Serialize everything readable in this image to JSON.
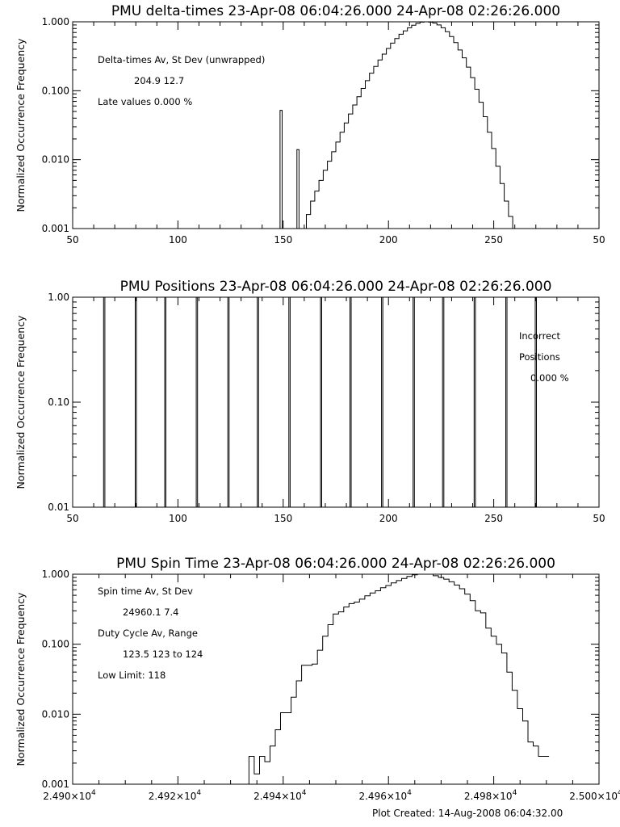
{
  "footer": "Plot Created: 14-Aug-2008 06:04:32.00",
  "chart_data": [
    {
      "type": "bar",
      "title": "PMU delta-times 23-Apr-08 06:04:26.000 24-Apr-08 02:26:26.000",
      "ylabel": "Normalized Occurrence Frequency",
      "y_scale": "log",
      "ylim": [
        0.001,
        1.0
      ],
      "y_tick_values": [
        0.001,
        0.01,
        0.1,
        1.0
      ],
      "y_tick_labels": [
        "0.001",
        "0.010",
        "0.100",
        "1.000"
      ],
      "x_ticks": [
        "50",
        "100",
        "150",
        "200",
        "250",
        "50"
      ],
      "annotations": [
        "Delta-times Av, St Dev (unwrapped)",
        "204.9    12.7",
        "Late values    0.000 %"
      ],
      "spikes": [
        {
          "x": 149,
          "value": 0.052
        },
        {
          "x": 157,
          "value": 0.014
        }
      ],
      "x_bin_start": 159,
      "x_bin_width": 2,
      "values": [
        0.001,
        0.0016,
        0.0025,
        0.0035,
        0.005,
        0.007,
        0.0095,
        0.013,
        0.018,
        0.025,
        0.034,
        0.046,
        0.062,
        0.082,
        0.108,
        0.14,
        0.18,
        0.225,
        0.28,
        0.34,
        0.41,
        0.49,
        0.57,
        0.66,
        0.74,
        0.82,
        0.89,
        0.95,
        0.99,
        1.0,
        0.99,
        0.96,
        0.9,
        0.82,
        0.72,
        0.61,
        0.5,
        0.39,
        0.3,
        0.22,
        0.155,
        0.105,
        0.068,
        0.042,
        0.025,
        0.0145,
        0.008,
        0.0045,
        0.0025,
        0.0015,
        0.001
      ]
    },
    {
      "type": "bar",
      "title": "PMU Positions 23-Apr-08 06:04:26.000 24-Apr-08 02:26:26.000",
      "ylabel": "Normalized Occurrence Frequency",
      "y_scale": "log",
      "ylim": [
        0.01,
        1.0
      ],
      "y_tick_values": [
        0.01,
        0.1,
        1.0
      ],
      "y_tick_labels": [
        "0.01",
        "0.10",
        "1.00"
      ],
      "x_ticks": [
        "50",
        "100",
        "150",
        "200",
        "250",
        "50"
      ],
      "annotations": [
        "Incorrect",
        "Positions",
        "0.000 %"
      ],
      "positions": [
        65,
        80,
        94,
        109,
        124,
        138,
        153,
        168,
        182,
        197,
        212,
        226,
        241,
        256,
        270
      ],
      "values": [
        1,
        1,
        1,
        1,
        1,
        1,
        1,
        1,
        1,
        1,
        1,
        1,
        1,
        1,
        1
      ]
    },
    {
      "type": "bar",
      "title": "PMU Spin Time 23-Apr-08 06:04:26.000 24-Apr-08 02:26:26.000",
      "ylabel": "Normalized Occurrence Frequency",
      "y_scale": "log",
      "ylim": [
        0.001,
        1.0
      ],
      "xlim": [
        24900,
        25000
      ],
      "y_tick_values": [
        0.001,
        0.01,
        0.1,
        1.0
      ],
      "y_tick_labels": [
        "0.001",
        "0.010",
        "0.100",
        "1.000"
      ],
      "x_tick_values": [
        24900,
        24920,
        24940,
        24960,
        24980,
        25000
      ],
      "x_tick_mantissas": [
        "2.490",
        "2.492",
        "2.494",
        "2.496",
        "2.498",
        "2.500"
      ],
      "x_tick_times": "×10",
      "x_tick_exponent": "4",
      "annotations": [
        "Spin time Av, St Dev",
        "24960.1        7.4",
        "Duty Cycle Av, Range",
        "123.5  123 to 124",
        "Low Limit: 118"
      ],
      "x_bin_start": 24933.5,
      "x_bin_width": 1,
      "values": [
        0.0025,
        0.0014,
        0.0025,
        0.0021,
        0.0035,
        0.006,
        0.0105,
        0.0105,
        0.0175,
        0.03,
        0.05,
        0.05,
        0.052,
        0.082,
        0.13,
        0.19,
        0.27,
        0.29,
        0.34,
        0.38,
        0.4,
        0.44,
        0.49,
        0.54,
        0.58,
        0.64,
        0.69,
        0.75,
        0.81,
        0.87,
        0.93,
        0.98,
        1.0,
        1.0,
        1.0,
        0.95,
        0.9,
        0.85,
        0.78,
        0.7,
        0.62,
        0.52,
        0.42,
        0.3,
        0.28,
        0.17,
        0.13,
        0.1,
        0.075,
        0.04,
        0.022,
        0.012,
        0.008,
        0.004,
        0.0035,
        0.0025,
        0.0025
      ]
    }
  ]
}
